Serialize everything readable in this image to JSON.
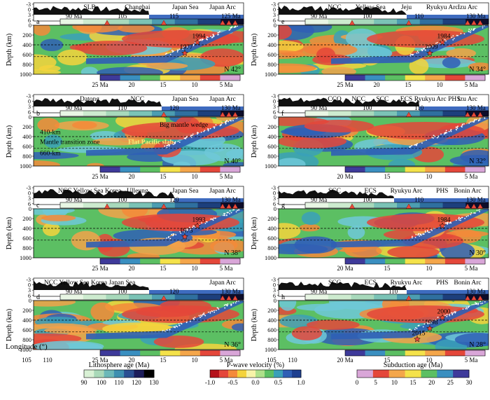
{
  "colors": {
    "mantle_red": "#e4473a",
    "mantle_orange": "#f48a3a",
    "mantle_yellow": "#f4d33c",
    "mantle_green": "#5cbf63",
    "mantle_teal": "#3aa0b8",
    "mantle_blue": "#2f5fb5",
    "topo_blue": "#3e6bbf",
    "triangle": "#e84a3a",
    "star": "#e84a3a"
  },
  "topo_ticks": [
    "-3",
    "0",
    "3",
    "6"
  ],
  "panels": [
    {
      "letter": "a",
      "latitude": "N 42°",
      "lith_age_ticks": [
        "90 Ma",
        "105",
        "115",
        "125 Ma"
      ],
      "region_labels": [
        "SLB",
        "Changbai",
        "Japan Sea",
        "Japan Arc"
      ],
      "event_labels": [
        "1994",
        "1977"
      ],
      "sub_age_ticks": [
        "25 Ma",
        "20",
        "15",
        "10",
        "5 Ma"
      ],
      "interp_labels": []
    },
    {
      "letter": "b",
      "latitude": "N 40°",
      "lith_age_ticks": [
        "90 Ma",
        "110",
        "120",
        "130 Ma"
      ],
      "region_labels": [
        "Datong",
        "NCC",
        "Japan Sea",
        "Japan Arc"
      ],
      "event_labels": [],
      "sub_age_ticks": [
        "25 Ma",
        "20",
        "15",
        "10",
        "5 Ma"
      ],
      "interp_labels": [
        "Big mantle wedge",
        "410-km",
        "Mantle transition zone",
        "Flat Pacific slab",
        "660-km"
      ]
    },
    {
      "letter": "c",
      "latitude": "N 38°",
      "lith_age_ticks": [
        "90 Ma",
        "100",
        "120",
        "130 Ma"
      ],
      "region_labels": [
        "NCC Yellow Sea  Korea",
        "Ulleung",
        "Japan Sea",
        "Japan Arc"
      ],
      "event_labels": [
        "1993",
        "1975"
      ],
      "sub_age_ticks": [
        "25 Ma",
        "20",
        "15",
        "10",
        "5 Ma"
      ],
      "interp_labels": []
    },
    {
      "letter": "d",
      "latitude": "N 36°",
      "lith_age_ticks": [
        "90 Ma",
        "100",
        "120",
        "130 Ma"
      ],
      "region_labels": [
        "NCC  Yellow Sea  Korea  Japan Sea",
        "Japan Arc"
      ],
      "event_labels": [],
      "sub_age_ticks": [
        "25 Ma",
        "20",
        "15",
        "10",
        "5 Ma"
      ],
      "interp_labels": []
    },
    {
      "letter": "e",
      "latitude": "N 34°",
      "lith_age_ticks": [
        "90 Ma",
        "100",
        "110",
        "130 Ma"
      ],
      "region_labels": [
        "NCC",
        "Yellow Sea",
        "Jeju",
        "Ryukyu Arc",
        "Izu Arc"
      ],
      "event_labels": [
        "1984",
        "2009"
      ],
      "sub_age_ticks": [
        "25 Ma",
        "20",
        "15",
        "10",
        "5 Ma"
      ],
      "interp_labels": []
    },
    {
      "letter": "f",
      "latitude": "N 32°",
      "lith_age_ticks": [
        "90 Ma",
        "100",
        "110",
        "130 Ma"
      ],
      "region_labels": [
        "CCO",
        "NCC",
        "SCC",
        "ECS",
        "Ryukyu Arc",
        "PHS",
        "Izu Arc"
      ],
      "event_labels": [],
      "sub_age_ticks": [
        "20 Ma",
        "15",
        "10",
        "5 Ma"
      ],
      "interp_labels": []
    },
    {
      "letter": "g",
      "latitude": "N 30°",
      "lith_age_ticks": [
        "90 Ma",
        "100",
        "110",
        "130 Ma"
      ],
      "region_labels": [
        "SCC",
        "ECS",
        "Ryukyu Arc",
        "PHS",
        "Bonin Arc"
      ],
      "event_labels": [
        "1984"
      ],
      "sub_age_ticks": [
        "20 Ma",
        "15",
        "10",
        "5 Ma"
      ],
      "interp_labels": []
    },
    {
      "letter": "h",
      "latitude": "N 28°",
      "lith_age_ticks": [
        "90 Ma",
        "110",
        "130 Ma"
      ],
      "region_labels": [
        "SCC",
        "ECS",
        "Ryukyu Arc",
        "PHS",
        "Bonin Arc"
      ],
      "event_labels": [
        "2000",
        "1998",
        "2015"
      ],
      "sub_age_ticks": [
        "20 Ma",
        "15",
        "10",
        "5 Ma"
      ],
      "interp_labels": []
    }
  ],
  "axes": {
    "depth_label": "Depth (km)",
    "depth_ticks": [
      "0",
      "200",
      "400",
      "600",
      "800",
      "1000"
    ],
    "longitude_label": "Longitude (°)",
    "longitude_ticks": [
      "105",
      "110"
    ]
  },
  "legends": [
    {
      "title": "Lithosphere age (Ma)",
      "ticks": [
        "90",
        "100",
        "110",
        "120",
        "130"
      ],
      "colors": [
        "#d9f1d5",
        "#a9d8b8",
        "#6cb8b8",
        "#3e8fb0",
        "#2b4f92",
        "#1c1c5a",
        "#000000"
      ]
    },
    {
      "title": "P-wave velocity (%)",
      "ticks": [
        "-1.0",
        "-0.5",
        "0.0",
        "0.5",
        "1.0"
      ],
      "colors": [
        "#b5121b",
        "#e4473a",
        "#f48a3a",
        "#f4d33c",
        "#f7f3a8",
        "#aee08a",
        "#5cbf63",
        "#3aa0b8",
        "#2f5fb5",
        "#1e3f8f"
      ]
    },
    {
      "title": "Subduction age (Ma)",
      "ticks": [
        "0",
        "5",
        "10",
        "15",
        "20",
        "25",
        "30"
      ],
      "colors": [
        "#d9a6d8",
        "#e4473a",
        "#f4a64a",
        "#f4e24a",
        "#5cbf63",
        "#3a8fc0",
        "#3e3a9a"
      ]
    }
  ]
}
